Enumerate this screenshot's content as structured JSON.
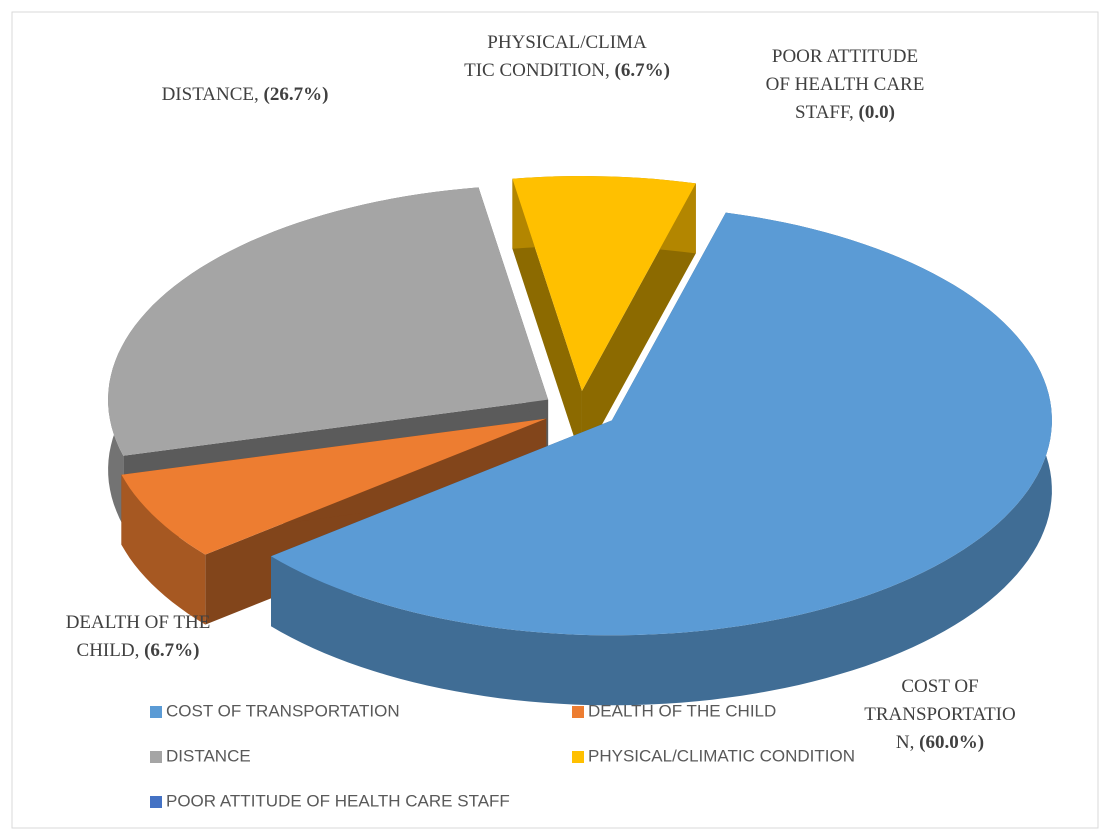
{
  "chart_data": {
    "type": "pie3d",
    "categories": [
      "COST OF TRANSPORTATION",
      "DEALTH OF THE CHILD",
      "DISTANCE",
      "PHYSICAL/CLIMATIC CONDITION",
      "POOR ATTITUDE OF HEALTH CARE STAFF"
    ],
    "values": [
      60.0,
      6.7,
      26.7,
      6.7,
      0.0
    ],
    "value_labels": [
      "(60.0%)",
      "(6.7%)",
      "(26.7%)",
      "(6.7%)",
      "(0.0)"
    ],
    "label_lines": [
      [
        "COST OF",
        "TRANSPORTATIO",
        "N,"
      ],
      [
        "DEALTH OF THE",
        "CHILD,"
      ],
      [
        "DISTANCE,"
      ],
      [
        "PHYSICAL/CLIMA",
        "TIC CONDITION,"
      ],
      [
        "POOR ATTITUDE",
        "OF HEALTH CARE",
        "STAFF,"
      ]
    ],
    "colors": [
      "#5b9bd5",
      "#ed7d31",
      "#a5a5a5",
      "#ffc000",
      "#4472c4"
    ],
    "legend": "bottom"
  }
}
